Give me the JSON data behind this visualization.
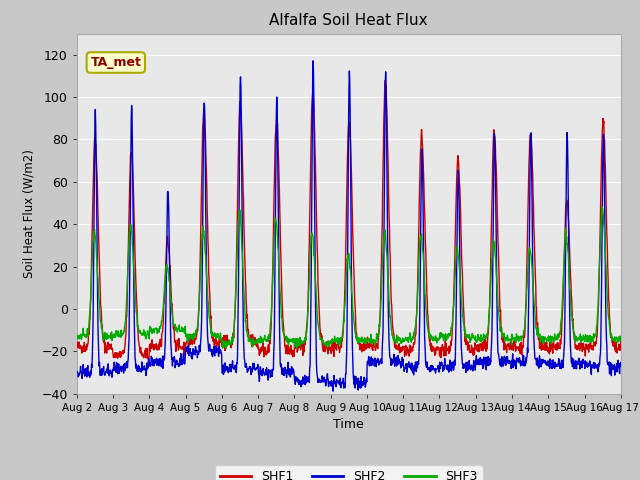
{
  "title": "Alfalfa Soil Heat Flux",
  "xlabel": "Time",
  "ylabel": "Soil Heat Flux (W/m2)",
  "ylim": [
    -40,
    130
  ],
  "yticks": [
    -40,
    -20,
    0,
    20,
    40,
    60,
    80,
    100,
    120
  ],
  "fig_bg_color": "#c8c8c8",
  "axes_bg_color": "#e8e8e8",
  "line_colors": [
    "#cc0000",
    "#0000cc",
    "#00aa00"
  ],
  "line_width": 1.0,
  "legend_labels": [
    "SHF1",
    "SHF2",
    "SHF3"
  ],
  "annotation_text": "TA_met",
  "annotation_bg": "#ffffcc",
  "annotation_border": "#aaaa00",
  "num_days": 15,
  "n_points_per_day": 96,
  "shf1_peaks": [
    80,
    75,
    32,
    93,
    97,
    90,
    103,
    88,
    107,
    82,
    70,
    83,
    83,
    51,
    89
  ],
  "shf2_peaks": [
    93,
    95,
    58,
    98,
    110,
    99,
    116,
    112,
    113,
    75,
    66,
    84,
    84,
    82,
    82
  ],
  "shf3_peaks": [
    37,
    40,
    20,
    37,
    46,
    42,
    36,
    26,
    36,
    35,
    28,
    32,
    28,
    35,
    48
  ],
  "shf1_mins": [
    -18,
    -22,
    -18,
    -16,
    -16,
    -20,
    -18,
    -18,
    -18,
    -19,
    -19,
    -18,
    -18,
    -18,
    -18
  ],
  "shf2_mins": [
    -30,
    -28,
    -25,
    -20,
    -28,
    -30,
    -34,
    -35,
    -25,
    -28,
    -27,
    -25,
    -25,
    -26,
    -27
  ],
  "shf3_mins": [
    -13,
    -12,
    -10,
    -13,
    -16,
    -15,
    -16,
    -15,
    -15,
    -14,
    -13,
    -14,
    -14,
    -14,
    -14
  ],
  "grid_color": "#ffffff",
  "spine_color": "#aaaaaa"
}
